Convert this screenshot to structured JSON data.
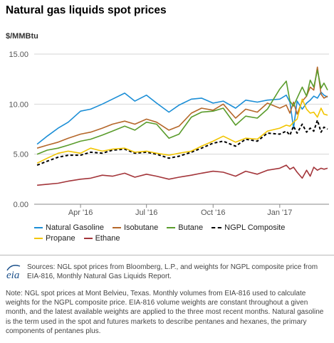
{
  "title": "Natural gas liquids spot prices",
  "unit_label": "$/MMBtu",
  "chart_data": {
    "type": "line",
    "x_axis": {
      "ticks": [
        {
          "label": "Apr '16",
          "date": "2016-04-01"
        },
        {
          "label": "Jul '16",
          "date": "2016-07-01"
        },
        {
          "label": "Oct '16",
          "date": "2016-10-01"
        },
        {
          "label": "Jan '17",
          "date": "2017-01-01"
        }
      ],
      "range": [
        "2016-01-28",
        "2017-03-10"
      ]
    },
    "y_axis": {
      "ticks": [
        "0.00",
        "5.00",
        "10.00",
        "15.00"
      ],
      "range": [
        0,
        15
      ]
    },
    "grid": "horizontal",
    "dates": [
      "2016-02-01",
      "2016-02-15",
      "2016-03-01",
      "2016-03-15",
      "2016-04-01",
      "2016-04-15",
      "2016-05-01",
      "2016-05-15",
      "2016-06-01",
      "2016-06-15",
      "2016-07-01",
      "2016-07-15",
      "2016-08-01",
      "2016-08-15",
      "2016-09-01",
      "2016-09-15",
      "2016-10-01",
      "2016-10-15",
      "2016-11-01",
      "2016-11-15",
      "2016-12-01",
      "2016-12-15",
      "2017-01-01",
      "2017-01-10",
      "2017-01-15",
      "2017-01-20",
      "2017-01-25",
      "2017-02-01",
      "2017-02-07",
      "2017-02-12",
      "2017-02-17",
      "2017-02-22",
      "2017-02-27",
      "2017-03-03",
      "2017-03-08"
    ],
    "series": [
      {
        "name": "Natural Gasoline",
        "color": "#1b8ed6",
        "values": [
          6.0,
          6.8,
          7.6,
          8.2,
          9.3,
          9.5,
          10.0,
          10.5,
          11.1,
          10.3,
          10.9,
          10.1,
          9.2,
          9.9,
          10.5,
          10.6,
          10.1,
          10.3,
          9.6,
          10.4,
          10.2,
          10.4,
          10.5,
          10.9,
          10.2,
          7.6,
          10.3,
          9.5,
          10.1,
          10.4,
          10.8,
          10.6,
          11.2,
          10.9,
          10.7
        ]
      },
      {
        "name": "Isobutane",
        "color": "#b5672a",
        "values": [
          5.6,
          5.9,
          6.2,
          6.6,
          7.0,
          7.2,
          7.6,
          8.0,
          8.3,
          8.0,
          8.5,
          8.2,
          7.4,
          7.8,
          9.1,
          9.6,
          9.4,
          10.0,
          8.6,
          9.5,
          9.2,
          10.1,
          9.6,
          9.9,
          9.1,
          10.2,
          9.0,
          10.3,
          10.8,
          11.7,
          11.4,
          13.7,
          11.0,
          10.6,
          10.8
        ]
      },
      {
        "name": "Butane",
        "color": "#5a9c2c",
        "values": [
          5.0,
          5.4,
          5.6,
          5.9,
          6.3,
          6.5,
          6.9,
          7.3,
          7.8,
          7.4,
          8.2,
          8.0,
          6.6,
          7.0,
          8.7,
          9.2,
          9.3,
          9.6,
          7.9,
          8.8,
          8.6,
          9.5,
          11.5,
          12.3,
          10.3,
          9.8,
          10.6,
          11.7,
          10.8,
          12.4,
          11.7,
          13.4,
          11.6,
          12.1,
          11.4
        ]
      },
      {
        "name": "NGPL Composite",
        "color": "#000000",
        "dash": true,
        "values": [
          3.9,
          4.3,
          4.7,
          4.9,
          4.9,
          5.2,
          5.1,
          5.4,
          5.5,
          5.1,
          5.2,
          5.0,
          4.6,
          4.8,
          5.2,
          5.6,
          6.1,
          6.3,
          5.8,
          6.5,
          6.3,
          7.1,
          7.0,
          7.3,
          6.9,
          7.8,
          7.1,
          8.0,
          7.2,
          7.6,
          7.3,
          8.4,
          7.2,
          7.7,
          7.5
        ]
      },
      {
        "name": "Propane",
        "color": "#f2c500",
        "values": [
          4.1,
          4.6,
          5.1,
          5.3,
          5.1,
          5.6,
          5.3,
          5.5,
          5.6,
          5.2,
          5.3,
          5.1,
          4.9,
          5.1,
          5.3,
          5.8,
          6.3,
          6.8,
          6.2,
          6.6,
          6.5,
          7.3,
          7.6,
          7.9,
          7.8,
          8.2,
          8.5,
          10.5,
          9.5,
          9.1,
          9.2,
          8.7,
          9.6,
          9.0,
          8.9
        ]
      },
      {
        "name": "Ethane",
        "color": "#a3353a",
        "values": [
          1.9,
          2.0,
          2.1,
          2.3,
          2.5,
          2.6,
          2.9,
          2.8,
          3.1,
          2.7,
          3.0,
          2.8,
          2.5,
          2.7,
          2.9,
          3.1,
          3.3,
          3.2,
          2.8,
          3.3,
          3.0,
          3.4,
          3.6,
          3.9,
          3.5,
          3.7,
          3.2,
          2.6,
          3.4,
          2.8,
          3.7,
          3.4,
          3.6,
          3.5,
          3.6
        ]
      }
    ]
  },
  "legend": [
    {
      "label": "Natural Gasoline",
      "color": "#1b8ed6"
    },
    {
      "label": "Isobutane",
      "color": "#b5672a"
    },
    {
      "label": "Butane",
      "color": "#5a9c2c"
    },
    {
      "label": "NGPL Composite",
      "color": "#000000",
      "dashed": true
    },
    {
      "label": "Propane",
      "color": "#f2c500"
    },
    {
      "label": "Ethane",
      "color": "#a3353a"
    }
  ],
  "logo_text": "eia",
  "sources": "Sources: NGL spot prices from Bloomberg, L.P., and weights for NGPL composite price from EIA-816, Monthly Natural Gas Liquids Report.",
  "note": "Note: NGL spot prices at Mont Belvieu, Texas. Monthly volumes from EIA-816 used to calculate weights for the NGPL composite price. EIA-816 volume weights are constant throughout a given month, and the latest available weights are applied to the three most recent months. Natural gasoline is the term used in the spot and futures markets to describe pentanes and hexanes, the primary components of pentanes plus."
}
